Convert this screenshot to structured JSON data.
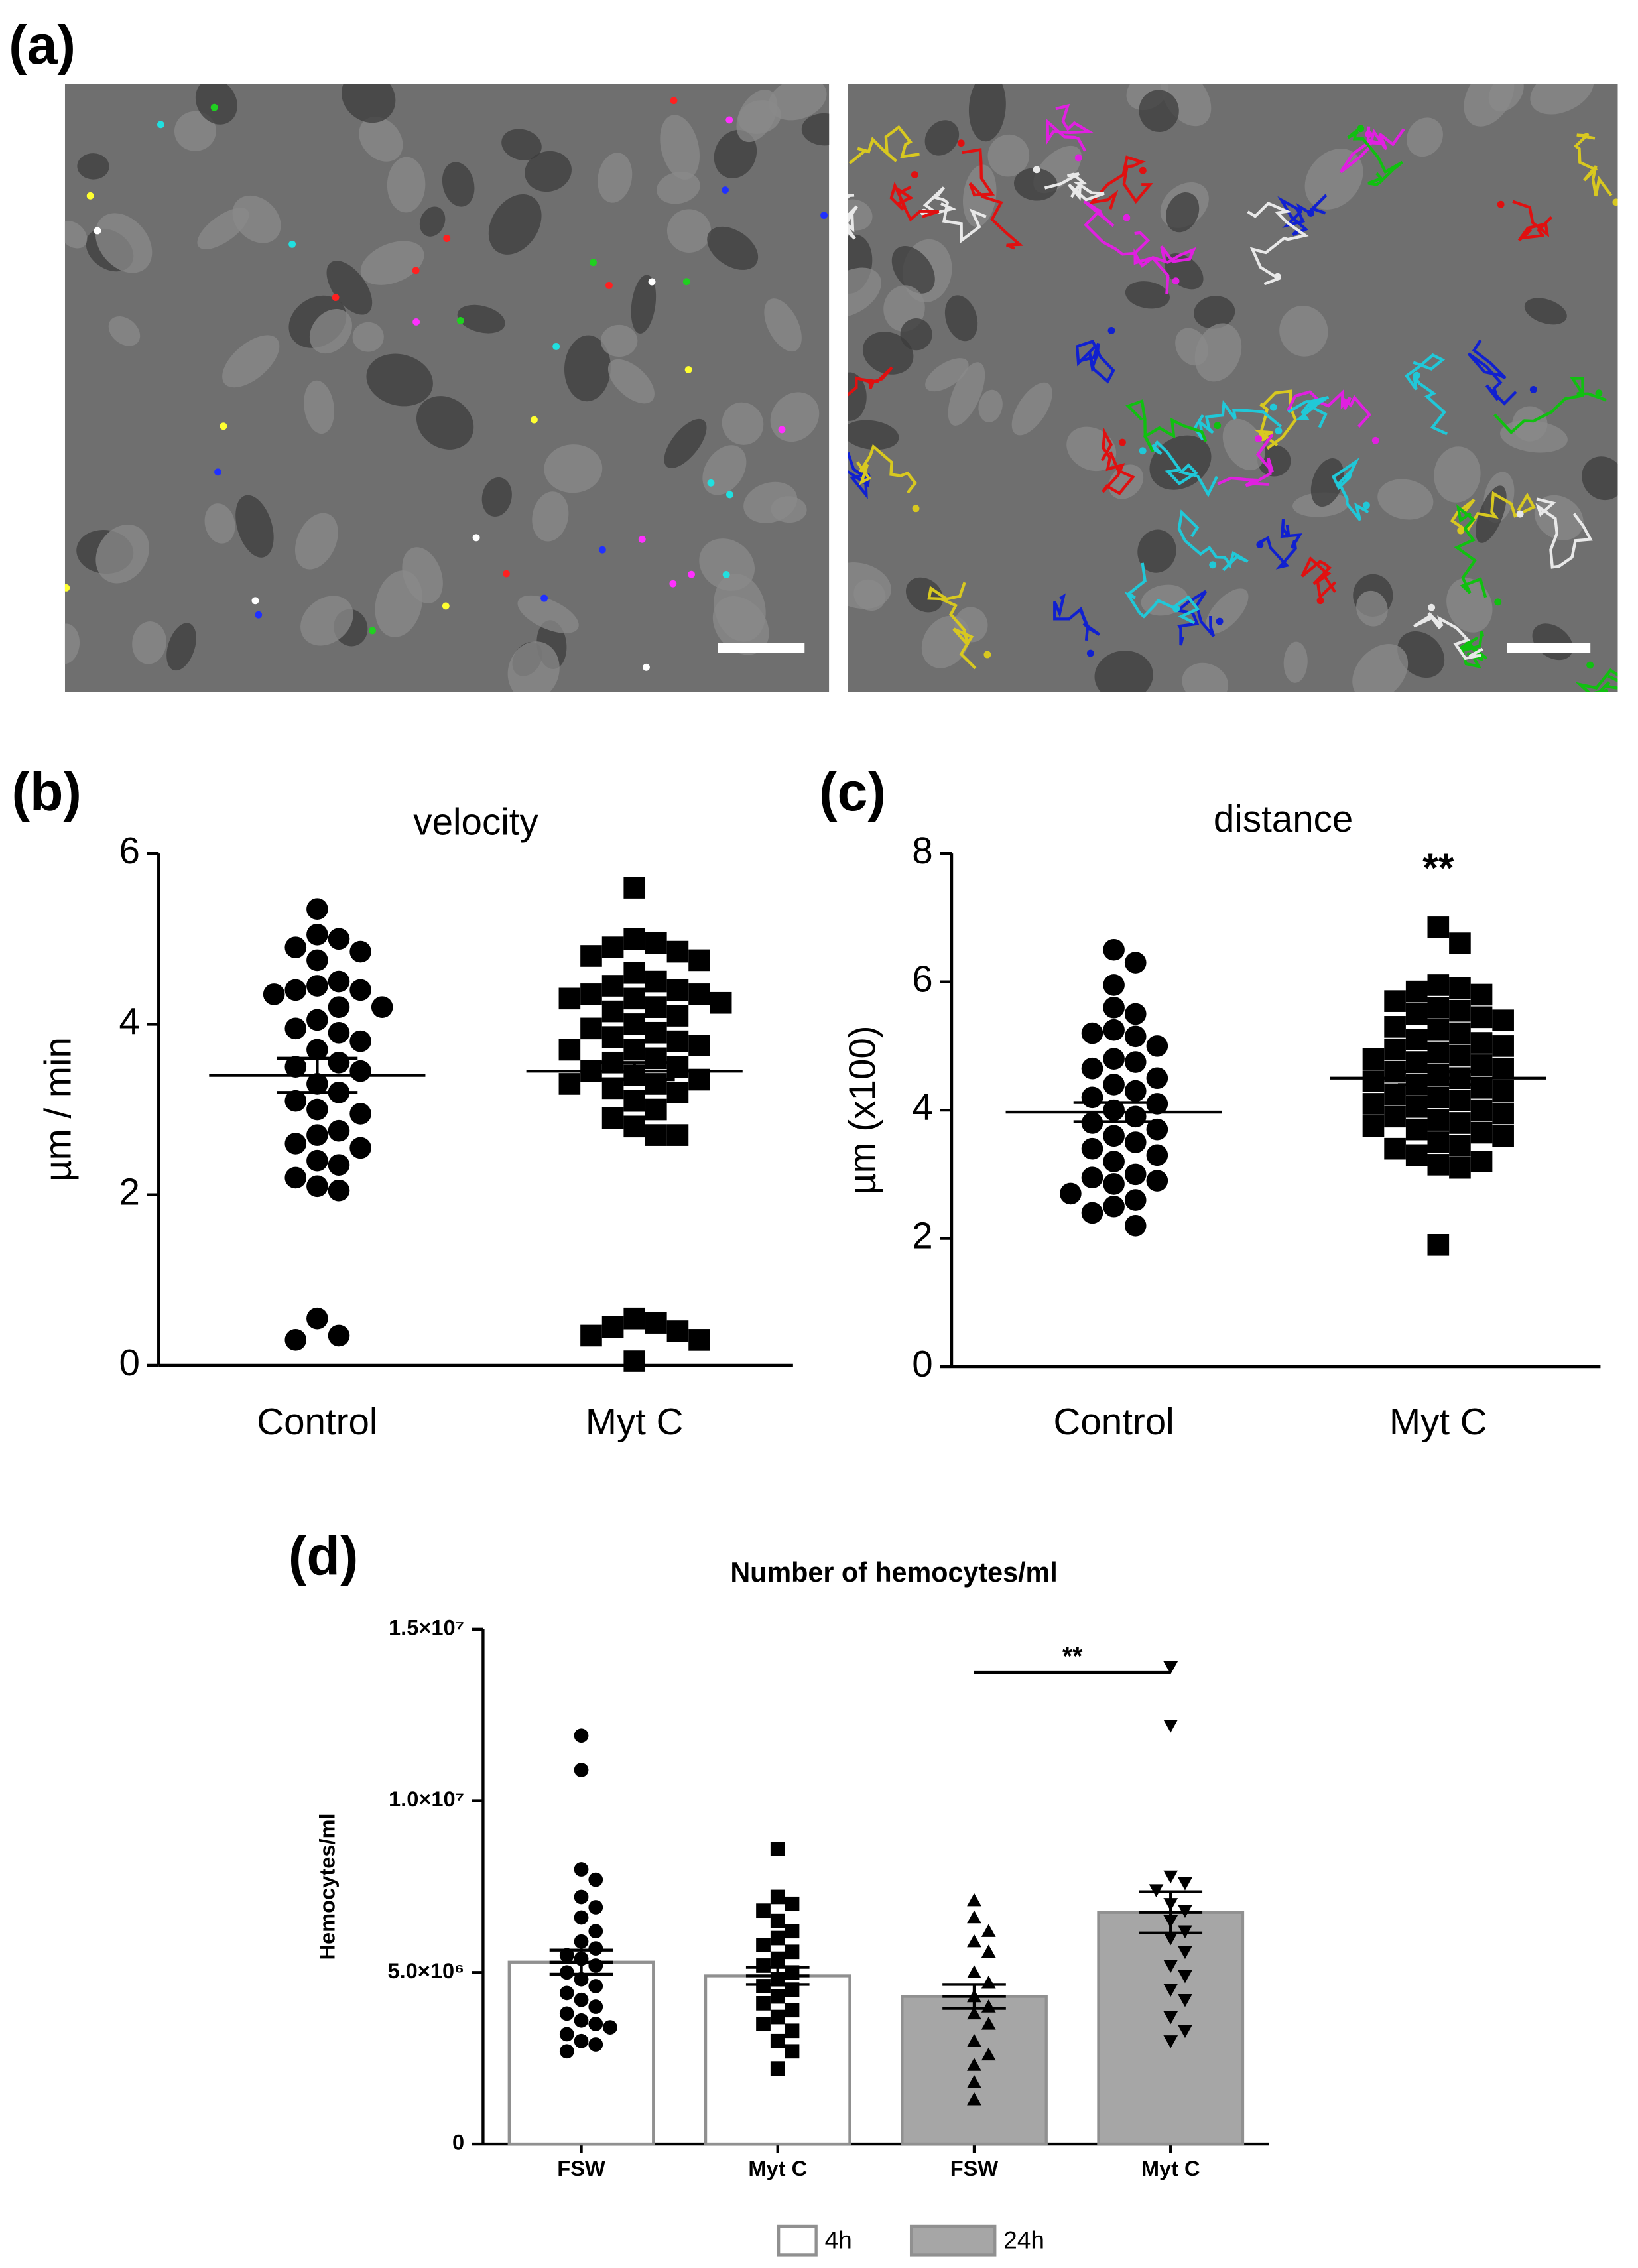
{
  "panel_a": {
    "label": "(a)"
  },
  "chart_data": [
    {
      "type": "strip",
      "panel": "(b)",
      "title": "velocity",
      "y_label": "µm / min",
      "categories": [
        "Control",
        "Myt C"
      ],
      "markers": [
        "circle",
        "square"
      ],
      "color": "#000000",
      "values": [
        [
          5.35,
          5.05,
          5.0,
          4.9,
          4.85,
          4.75,
          4.5,
          4.45,
          4.4,
          4.4,
          4.35,
          4.2,
          4.2,
          4.05,
          3.95,
          3.9,
          3.8,
          3.7,
          3.55,
          3.5,
          3.45,
          3.3,
          3.2,
          3.1,
          3.0,
          2.95,
          2.75,
          2.7,
          2.6,
          2.55,
          2.4,
          2.35,
          2.2,
          2.1,
          2.05,
          0.55,
          0.35,
          0.3
        ],
        [
          5.6,
          5.0,
          4.95,
          4.9,
          4.85,
          4.8,
          4.75,
          4.6,
          4.5,
          4.45,
          4.4,
          4.35,
          4.35,
          4.3,
          4.3,
          4.25,
          4.2,
          4.15,
          4.1,
          4.0,
          3.95,
          3.9,
          3.85,
          3.8,
          3.75,
          3.7,
          3.7,
          3.6,
          3.55,
          3.5,
          3.45,
          3.4,
          3.35,
          3.3,
          3.3,
          3.25,
          3.2,
          3.1,
          3.0,
          2.9,
          2.8,
          2.7,
          2.7,
          0.55,
          0.5,
          0.45,
          0.4,
          0.35,
          0.3,
          0.05
        ]
      ],
      "mean": [
        3.4,
        3.45
      ],
      "sem": [
        0.2,
        0.1
      ],
      "ylim": [
        0,
        6
      ],
      "yticks": [
        0,
        2,
        4,
        6
      ]
    },
    {
      "type": "strip",
      "panel": "(c)",
      "title": "distance",
      "y_label": "µm (x100)",
      "annotation": "**",
      "categories": [
        "Control",
        "Myt C"
      ],
      "markers": [
        "circle",
        "square"
      ],
      "color": "#000000",
      "values": [
        [
          6.5,
          6.3,
          5.95,
          5.6,
          5.5,
          5.25,
          5.2,
          5.15,
          5.0,
          4.8,
          4.75,
          4.65,
          4.5,
          4.4,
          4.3,
          4.2,
          4.1,
          4.0,
          3.9,
          3.8,
          3.7,
          3.6,
          3.5,
          3.4,
          3.3,
          3.2,
          3.0,
          2.95,
          2.9,
          2.85,
          2.7,
          2.6,
          2.5,
          2.4,
          2.2
        ],
        [
          6.85,
          6.6,
          5.95,
          5.9,
          5.85,
          5.8,
          5.7,
          5.6,
          5.55,
          5.5,
          5.45,
          5.4,
          5.3,
          5.25,
          5.2,
          5.1,
          5.05,
          5.0,
          4.95,
          4.9,
          4.85,
          4.8,
          4.75,
          4.7,
          4.65,
          4.6,
          4.55,
          4.5,
          4.45,
          4.4,
          4.35,
          4.3,
          4.25,
          4.2,
          4.15,
          4.1,
          4.05,
          4.0,
          3.95,
          3.9,
          3.85,
          3.8,
          3.75,
          3.7,
          3.65,
          3.6,
          3.5,
          3.45,
          3.4,
          3.3,
          3.2,
          3.15,
          3.1,
          1.9
        ]
      ],
      "mean": [
        3.97,
        4.5
      ],
      "sem": [
        0.15,
        0.1
      ],
      "ylim": [
        0,
        8
      ],
      "yticks": [
        0,
        2,
        4,
        6,
        8
      ]
    },
    {
      "type": "bar",
      "panel": "(d)",
      "title": "Number of hemocytes/ml",
      "y_label": "Hemocytes/ml",
      "annotation": "**",
      "categories": [
        "FSW",
        "Myt C",
        "FSW",
        "Myt C"
      ],
      "values": [
        5300000,
        4900000,
        4300000,
        6750000
      ],
      "sem": [
        350000,
        250000,
        350000,
        600000
      ],
      "bar_colors": [
        "#ffffff",
        "#ffffff",
        "#a6a6a6",
        "#a6a6a6"
      ],
      "markers": [
        "circle",
        "square",
        "triangle-up",
        "triangle-down"
      ],
      "points": [
        [
          11900000.0,
          10900000.0,
          8000000.0,
          7700000.0,
          7200000.0,
          6900000.0,
          6600000.0,
          6200000.0,
          5900000.0,
          5700000.0,
          5500000.0,
          5400000.0,
          5200000.0,
          5000000.0,
          4800000.0,
          4600000.0,
          4400000.0,
          4200000.0,
          4000000.0,
          3800000.0,
          3600000.0,
          3500000.0,
          3400000.0,
          3200000.0,
          3000000.0,
          2900000.0,
          2700000.0
        ],
        [
          8600000.0,
          7200000.0,
          7000000.0,
          6800000.0,
          6500000.0,
          6200000.0,
          6000000.0,
          5800000.0,
          5600000.0,
          5400000.0,
          5200000.0,
          5000000.0,
          4800000.0,
          4600000.0,
          4500000.0,
          4300000.0,
          4100000.0,
          3900000.0,
          3700000.0,
          3500000.0,
          3300000.0,
          3000000.0,
          2700000.0,
          2200000.0
        ],
        [
          7100000.0,
          6600000.0,
          6200000.0,
          5900000.0,
          5600000.0,
          5000000.0,
          4700000.0,
          4300000.0,
          4000000.0,
          3800000.0,
          3500000.0,
          3000000.0,
          2600000.0,
          2300000.0,
          1800000.0,
          1300000.0
        ],
        [
          13900000.0,
          12200000.0,
          7800000.0,
          7600000.0,
          7400000.0,
          7000000.0,
          6800000.0,
          6500000.0,
          6200000.0,
          6000000.0,
          5600000.0,
          5200000.0,
          4900000.0,
          4500000.0,
          4200000.0,
          3700000.0,
          3300000.0,
          3000000.0
        ]
      ],
      "ylim": [
        0,
        15000000
      ],
      "yticks": [
        0,
        {
          "value": 5000000,
          "label": "5.0×10⁶"
        },
        {
          "value": 10000000,
          "label": "1.0×10⁷"
        },
        {
          "value": 15000000,
          "label": "1.5×10⁷"
        }
      ],
      "legend": [
        {
          "name": "4h",
          "color": "#ffffff"
        },
        {
          "name": "24h",
          "color": "#a6a6a6"
        }
      ]
    }
  ]
}
